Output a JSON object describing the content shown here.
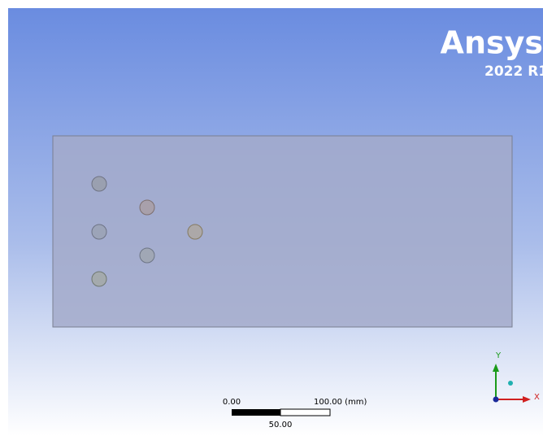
{
  "viewport": {
    "logo": {
      "brand": "Ansys",
      "version": "2022 R1"
    },
    "scale_bar": {
      "start": "0.00",
      "end": "100.00 (mm)",
      "mid": "50.00"
    },
    "triad": {
      "y": "Y",
      "x": "X"
    }
  }
}
